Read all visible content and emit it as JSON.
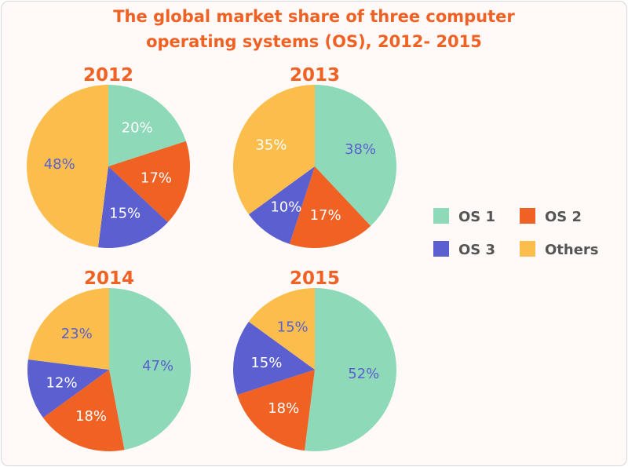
{
  "chart_data": {
    "type": "pie",
    "title_lines": [
      "The global market share of three computer",
      "operating systems (OS), 2012- 2015"
    ],
    "legend": [
      "OS 1",
      "OS 2",
      "OS 3",
      "Others"
    ],
    "legend_placement": "right",
    "colors": [
      "#8dd9b8",
      "#f06124",
      "#5b5fcf",
      "#fbbe4d"
    ],
    "title_color": "#f06124",
    "pies": [
      {
        "title": "2012",
        "values": [
          20,
          17,
          15,
          48
        ],
        "labels": [
          "20%",
          "17%",
          "15%",
          "48%"
        ],
        "label_colors": [
          "#ffffff",
          "#ffffff",
          "#ffffff",
          "#5b5fcf"
        ]
      },
      {
        "title": "2013",
        "values": [
          38,
          17,
          10,
          35
        ],
        "labels": [
          "38%",
          "17%",
          "10%",
          "35%"
        ],
        "label_colors": [
          "#5b5fcf",
          "#ffffff",
          "#ffffff",
          "#ffffff"
        ]
      },
      {
        "title": "2014",
        "values": [
          47,
          18,
          12,
          23
        ],
        "labels": [
          "47%",
          "18%",
          "12%",
          "23%"
        ],
        "label_colors": [
          "#5b5fcf",
          "#ffffff",
          "#ffffff",
          "#5b5fcf"
        ]
      },
      {
        "title": "2015",
        "values": [
          52,
          18,
          15,
          15
        ],
        "labels": [
          "52%",
          "18%",
          "15%",
          "15%"
        ],
        "label_colors": [
          "#5b5fcf",
          "#ffffff",
          "#ffffff",
          "#5b5fcf"
        ]
      }
    ]
  }
}
